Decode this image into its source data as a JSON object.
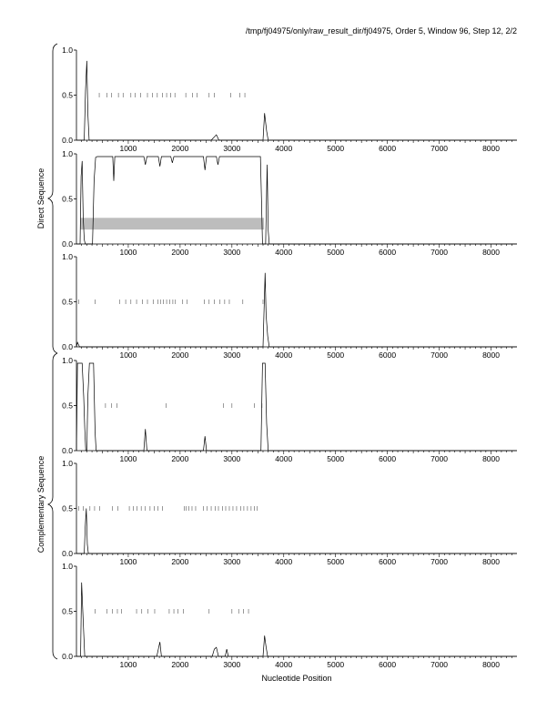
{
  "header": {
    "title": "/tmp/fj04975/only/raw_result_dir/fj04975, Order 5, Window 96, Step 12, 2/2"
  },
  "group_labels": {
    "direct": "Direct Sequence",
    "complementary": "Complementary Sequence"
  },
  "chart_data": {
    "type": "line",
    "xlabel": "Nucleotide Position",
    "xlim": [
      0,
      8500
    ],
    "x_ticks": [
      1000,
      2000,
      3000,
      4000,
      5000,
      6000,
      7000,
      8000
    ],
    "ylim": [
      0,
      1
    ],
    "grid": false,
    "panels": [
      {
        "group": "direct",
        "y_ticks": [
          "0.0",
          "0.5",
          "1.0"
        ],
        "line": [
          [
            0,
            0
          ],
          [
            150,
            0
          ],
          [
            175,
            0.55
          ],
          [
            200,
            0.88
          ],
          [
            220,
            0.3
          ],
          [
            245,
            0
          ],
          [
            2600,
            0
          ],
          [
            2700,
            0.06
          ],
          [
            2750,
            0
          ],
          [
            3600,
            0
          ],
          [
            3630,
            0.3
          ],
          [
            3670,
            0.1
          ],
          [
            3700,
            0
          ],
          [
            8500,
            0
          ]
        ],
        "marks_y": 0.5,
        "marks_x": [
          440,
          590,
          680,
          810,
          900,
          1050,
          1130,
          1240,
          1370,
          1470,
          1560,
          1660,
          1740,
          1820,
          1900,
          2110,
          2240,
          2330,
          2560,
          2660,
          2980,
          3150,
          3250
        ],
        "band": null
      },
      {
        "group": "direct",
        "y_ticks": [
          "0.0",
          "0.5",
          "1.0"
        ],
        "line": [
          [
            0,
            0
          ],
          [
            70,
            0
          ],
          [
            90,
            0.75
          ],
          [
            110,
            0.92
          ],
          [
            130,
            0.3
          ],
          [
            150,
            0.05
          ],
          [
            170,
            0
          ],
          [
            310,
            0
          ],
          [
            340,
            0.7
          ],
          [
            370,
            0.96
          ],
          [
            400,
            0.97
          ],
          [
            650,
            0.97
          ],
          [
            700,
            0.97
          ],
          [
            720,
            0.7
          ],
          [
            740,
            0.97
          ],
          [
            1300,
            0.97
          ],
          [
            1330,
            0.88
          ],
          [
            1360,
            0.97
          ],
          [
            1580,
            0.97
          ],
          [
            1610,
            0.86
          ],
          [
            1640,
            0.97
          ],
          [
            1820,
            0.97
          ],
          [
            1850,
            0.9
          ],
          [
            1880,
            0.97
          ],
          [
            2450,
            0.97
          ],
          [
            2480,
            0.82
          ],
          [
            2510,
            0.97
          ],
          [
            2700,
            0.97
          ],
          [
            2730,
            0.88
          ],
          [
            2760,
            0.97
          ],
          [
            3550,
            0.97
          ],
          [
            3570,
            0.5
          ],
          [
            3590,
            0
          ],
          [
            3650,
            0
          ],
          [
            3680,
            0.88
          ],
          [
            3700,
            0.15
          ],
          [
            3720,
            0
          ],
          [
            8500,
            0
          ]
        ],
        "marks_y": null,
        "marks_x": [],
        "band": {
          "x_start": 80,
          "x_end": 3620,
          "y_low": 0.16,
          "y_high": 0.29
        }
      },
      {
        "group": "direct",
        "y_ticks": [
          "0.0",
          "0.5",
          "1.0"
        ],
        "line": [
          [
            0,
            0
          ],
          [
            20,
            0.05
          ],
          [
            60,
            0
          ],
          [
            3600,
            0
          ],
          [
            3640,
            0.82
          ],
          [
            3660,
            0.35
          ],
          [
            3690,
            0.12
          ],
          [
            3720,
            0
          ],
          [
            8500,
            0
          ]
        ],
        "marks_y": 0.5,
        "marks_x": [
          40,
          360,
          830,
          950,
          1050,
          1160,
          1270,
          1370,
          1480,
          1570,
          1620,
          1680,
          1740,
          1800,
          1860,
          1910,
          2050,
          2130,
          2470,
          2560,
          2660,
          2770,
          2860,
          2950,
          3210,
          3600
        ],
        "band": null
      },
      {
        "group": "complementary",
        "y_ticks": [
          "0.0",
          "0.5",
          "1.0"
        ],
        "line": [
          [
            0,
            0
          ],
          [
            20,
            0.97
          ],
          [
            110,
            0.97
          ],
          [
            140,
            0.6
          ],
          [
            160,
            0.25
          ],
          [
            180,
            0
          ],
          [
            200,
            0
          ],
          [
            220,
            0.6
          ],
          [
            250,
            0.97
          ],
          [
            330,
            0.97
          ],
          [
            360,
            0.2
          ],
          [
            380,
            0
          ],
          [
            1300,
            0
          ],
          [
            1330,
            0.24
          ],
          [
            1360,
            0
          ],
          [
            2450,
            0
          ],
          [
            2480,
            0.16
          ],
          [
            2510,
            0
          ],
          [
            3560,
            0
          ],
          [
            3590,
            0.97
          ],
          [
            3640,
            0.97
          ],
          [
            3670,
            0.3
          ],
          [
            3700,
            0
          ],
          [
            8500,
            0
          ]
        ],
        "marks_y": 0.5,
        "marks_x": [
          560,
          680,
          780,
          1730,
          2840,
          3000,
          3430,
          3580
        ],
        "band": null
      },
      {
        "group": "complementary",
        "y_ticks": [
          "0.0",
          "0.5",
          "1.0"
        ],
        "line": [
          [
            0,
            0
          ],
          [
            150,
            0
          ],
          [
            170,
            0.3
          ],
          [
            190,
            0.5
          ],
          [
            210,
            0.1
          ],
          [
            230,
            0
          ],
          [
            8500,
            0
          ]
        ],
        "marks_y": 0.5,
        "marks_x": [
          40,
          130,
          260,
          350,
          450,
          690,
          800,
          1020,
          1100,
          1170,
          1250,
          1330,
          1420,
          1500,
          1570,
          1660,
          2080,
          2120,
          2170,
          2230,
          2300,
          2450,
          2520,
          2600,
          2680,
          2740,
          2820,
          2880,
          2950,
          3020,
          3090,
          3170,
          3230,
          3300,
          3370,
          3430,
          3490
        ],
        "band": null
      },
      {
        "group": "complementary",
        "y_ticks": [
          "0.0",
          "0.5",
          "1.0"
        ],
        "line": [
          [
            0,
            0
          ],
          [
            80,
            0
          ],
          [
            100,
            0.82
          ],
          [
            130,
            0.4
          ],
          [
            160,
            0
          ],
          [
            1550,
            0
          ],
          [
            1580,
            0.08
          ],
          [
            1610,
            0.16
          ],
          [
            1640,
            0
          ],
          [
            2620,
            0
          ],
          [
            2660,
            0.08
          ],
          [
            2700,
            0.1
          ],
          [
            2740,
            0
          ],
          [
            2870,
            0
          ],
          [
            2900,
            0.08
          ],
          [
            2930,
            0
          ],
          [
            3600,
            0
          ],
          [
            3630,
            0.23
          ],
          [
            3660,
            0.1
          ],
          [
            3690,
            0
          ],
          [
            8500,
            0
          ]
        ],
        "marks_y": 0.5,
        "marks_x": [
          360,
          590,
          690,
          790,
          870,
          1160,
          1260,
          1380,
          1510,
          1790,
          1880,
          1960,
          2060,
          2560,
          3000,
          3130,
          3220,
          3320
        ],
        "band": null
      }
    ]
  }
}
